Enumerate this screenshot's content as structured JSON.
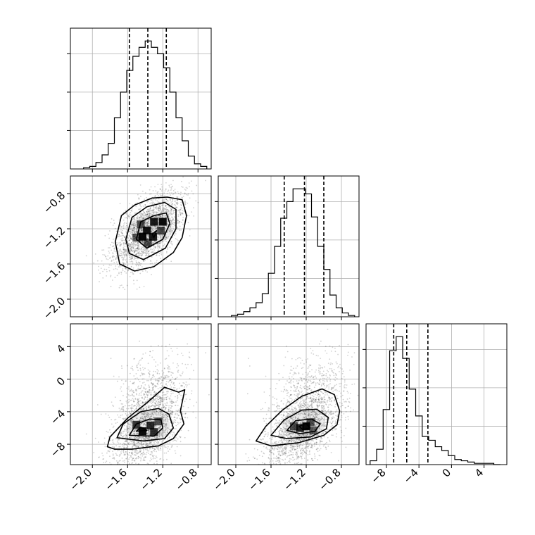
{
  "chart_data": {
    "type": "corner",
    "grid": true,
    "colors": {
      "line": "#000000",
      "grid": "#b0b0b0",
      "scatter": "#000000"
    },
    "params": [
      {
        "id": "p0",
        "lim": [
          -2.25,
          -0.65
        ],
        "ticks": [
          "-2.0",
          "-1.6",
          "-1.2",
          "-0.8"
        ],
        "tick_values": [
          -2.0,
          -1.6,
          -1.2,
          -0.8
        ]
      },
      {
        "id": "p1",
        "lim": [
          -2.2,
          -0.6
        ],
        "ticks": [
          "-2.0",
          "-1.6",
          "-1.2",
          "-0.8"
        ],
        "tick_values": [
          -2.0,
          -1.6,
          -1.2,
          -0.8
        ]
      },
      {
        "id": "p2",
        "lim": [
          -10.5,
          6.8
        ],
        "ticks": [
          "-8",
          "-4",
          "0",
          "4"
        ],
        "tick_values": [
          -8,
          -4,
          0,
          4
        ]
      }
    ],
    "histograms": [
      {
        "param": 0,
        "bin_edges": [
          -2.1,
          -2.03,
          -1.96,
          -1.89,
          -1.82,
          -1.75,
          -1.68,
          -1.61,
          -1.54,
          -1.47,
          -1.4,
          -1.33,
          -1.26,
          -1.19,
          -1.12,
          -1.05,
          -0.98,
          -0.91,
          -0.84,
          -0.77,
          -0.7
        ],
        "counts": [
          0.01,
          0.02,
          0.05,
          0.11,
          0.2,
          0.4,
          0.6,
          0.77,
          0.88,
          0.95,
          1.0,
          0.95,
          0.9,
          0.79,
          0.6,
          0.4,
          0.22,
          0.1,
          0.04,
          0.02
        ],
        "quantiles": [
          -1.58,
          -1.37,
          -1.16
        ]
      },
      {
        "param": 1,
        "bin_edges": [
          -2.05,
          -1.98,
          -1.91,
          -1.84,
          -1.77,
          -1.7,
          -1.63,
          -1.56,
          -1.49,
          -1.42,
          -1.35,
          -1.28,
          -1.21,
          -1.14,
          -1.07,
          -1.0,
          -0.93,
          -0.86,
          -0.79,
          -0.72,
          -0.65
        ],
        "counts": [
          0.01,
          0.02,
          0.04,
          0.07,
          0.11,
          0.18,
          0.34,
          0.55,
          0.77,
          0.9,
          1.0,
          1.0,
          0.96,
          0.78,
          0.55,
          0.37,
          0.17,
          0.07,
          0.03,
          0.01
        ],
        "quantiles": [
          -1.45,
          -1.22,
          -1.0
        ]
      },
      {
        "param": 2,
        "bin_edges": [
          -10.0,
          -9.2,
          -8.4,
          -7.6,
          -6.8,
          -6.0,
          -5.2,
          -4.4,
          -3.6,
          -2.8,
          -2.0,
          -1.2,
          -0.4,
          0.4,
          1.2,
          2.0,
          2.8,
          3.6,
          4.4,
          5.2,
          6.0
        ],
        "counts": [
          0.03,
          0.12,
          0.43,
          0.89,
          1.0,
          0.83,
          0.59,
          0.38,
          0.22,
          0.19,
          0.14,
          0.11,
          0.07,
          0.04,
          0.03,
          0.02,
          0.01,
          0.01,
          0.01,
          0.0
        ],
        "quantiles": [
          -7.1,
          -5.5,
          -2.9
        ]
      }
    ],
    "pairs": [
      {
        "x_param": 0,
        "y_param": 1,
        "density_cells": [
          [
            -1.43,
            -1.29,
            1.0
          ],
          [
            -1.31,
            -1.29,
            0.9
          ],
          [
            -1.38,
            -1.22,
            0.95
          ],
          [
            -1.3,
            -1.12,
            0.9
          ],
          [
            -1.2,
            -1.12,
            1.0
          ],
          [
            -1.45,
            -1.15,
            0.55
          ],
          [
            -1.22,
            -1.22,
            0.6
          ],
          [
            -1.37,
            -1.36,
            0.55
          ],
          [
            -1.5,
            -1.3,
            0.45
          ]
        ],
        "contours": [
          [
            [
              -1.32,
              -1.26
            ],
            [
              -1.27,
              -1.22
            ],
            [
              -1.3,
              -1.3
            ]
          ],
          [
            [
              -1.5,
              -1.32
            ],
            [
              -1.45,
              -1.12
            ],
            [
              -1.3,
              -1.05
            ],
            [
              -1.16,
              -1.02
            ],
            [
              -1.12,
              -1.14
            ],
            [
              -1.2,
              -1.32
            ],
            [
              -1.38,
              -1.42
            ]
          ],
          [
            [
              -1.62,
              -1.32
            ],
            [
              -1.55,
              -1.07
            ],
            [
              -1.38,
              -0.95
            ],
            [
              -1.18,
              -0.9
            ],
            [
              -1.05,
              -0.98
            ],
            [
              -1.05,
              -1.2
            ],
            [
              -1.17,
              -1.42
            ],
            [
              -1.42,
              -1.55
            ],
            [
              -1.58,
              -1.48
            ]
          ],
          [
            [
              -1.74,
              -1.35
            ],
            [
              -1.67,
              -1.05
            ],
            [
              -1.52,
              -0.93
            ],
            [
              -1.32,
              -0.85
            ],
            [
              -1.15,
              -0.84
            ],
            [
              -0.98,
              -0.87
            ],
            [
              -0.93,
              -1.05
            ],
            [
              -0.98,
              -1.3
            ],
            [
              -1.08,
              -1.47
            ],
            [
              -1.3,
              -1.63
            ],
            [
              -1.52,
              -1.68
            ],
            [
              -1.69,
              -1.6
            ]
          ]
        ]
      },
      {
        "x_param": 0,
        "y_param": 2,
        "density_cells": [
          [
            -1.43,
            -6.4,
            1.0
          ],
          [
            -1.34,
            -5.7,
            0.8
          ],
          [
            -1.3,
            -6.5,
            0.75
          ],
          [
            -1.5,
            -5.6,
            0.7
          ],
          [
            -1.25,
            -5.2,
            0.55
          ]
        ],
        "contours": [
          [
            [
              -1.5,
              -6.4
            ],
            [
              -1.45,
              -5.9
            ],
            [
              -1.38,
              -6.3
            ]
          ],
          [
            [
              -1.58,
              -6.9
            ],
            [
              -1.5,
              -5.5
            ],
            [
              -1.35,
              -4.9
            ],
            [
              -1.22,
              -5.0
            ],
            [
              -1.2,
              -6.0
            ],
            [
              -1.3,
              -7.0
            ]
          ],
          [
            [
              -1.72,
              -7.2
            ],
            [
              -1.65,
              -5.5
            ],
            [
              -1.45,
              -4.0
            ],
            [
              -1.25,
              -3.6
            ],
            [
              -1.13,
              -4.3
            ],
            [
              -1.08,
              -6.0
            ],
            [
              -1.18,
              -7.3
            ],
            [
              -1.42,
              -7.6
            ]
          ],
          [
            [
              -1.83,
              -8.3
            ],
            [
              -1.8,
              -7.1
            ],
            [
              -1.6,
              -4.8
            ],
            [
              -1.38,
              -2.9
            ],
            [
              -1.18,
              -1.0
            ],
            [
              -1.02,
              -1.6
            ],
            [
              -0.95,
              -1.3
            ],
            [
              -1.0,
              -3.9
            ],
            [
              -0.96,
              -5.5
            ],
            [
              -1.08,
              -7.3
            ],
            [
              -1.25,
              -8.2
            ],
            [
              -1.55,
              -8.6
            ],
            [
              -1.75,
              -8.6
            ]
          ]
        ]
      },
      {
        "x_param": 1,
        "y_param": 2,
        "density_cells": [
          [
            -1.2,
            -5.8,
            1.0
          ],
          [
            -1.27,
            -6.0,
            0.85
          ],
          [
            -1.34,
            -5.8,
            0.6
          ],
          [
            -1.15,
            -5.3,
            0.55
          ],
          [
            -1.12,
            -6.3,
            0.45
          ]
        ],
        "contours": [
          [
            [
              -1.28,
              -5.8
            ],
            [
              -1.2,
              -5.4
            ],
            [
              -1.16,
              -6.0
            ],
            [
              -1.24,
              -6.2
            ]
          ],
          [
            [
              -1.42,
              -6.3
            ],
            [
              -1.32,
              -5.1
            ],
            [
              -1.14,
              -4.9
            ],
            [
              -1.04,
              -5.5
            ],
            [
              -1.1,
              -6.4
            ],
            [
              -1.27,
              -6.7
            ]
          ],
          [
            [
              -1.6,
              -6.9
            ],
            [
              -1.45,
              -5.0
            ],
            [
              -1.25,
              -3.8
            ],
            [
              -1.08,
              -3.7
            ],
            [
              -0.95,
              -4.7
            ],
            [
              -0.97,
              -6.1
            ],
            [
              -1.15,
              -7.1
            ],
            [
              -1.42,
              -7.3
            ]
          ],
          [
            [
              -1.77,
              -7.6
            ],
            [
              -1.66,
              -5.8
            ],
            [
              -1.47,
              -3.8
            ],
            [
              -1.25,
              -2.1
            ],
            [
              -1.02,
              -1.2
            ],
            [
              -0.88,
              -1.9
            ],
            [
              -0.82,
              -3.9
            ],
            [
              -0.85,
              -5.6
            ],
            [
              -1.0,
              -6.9
            ],
            [
              -1.28,
              -7.8
            ],
            [
              -1.6,
              -8.2
            ]
          ]
        ]
      }
    ],
    "scatter": {
      "n_points": 2200,
      "seed": 7
    }
  }
}
